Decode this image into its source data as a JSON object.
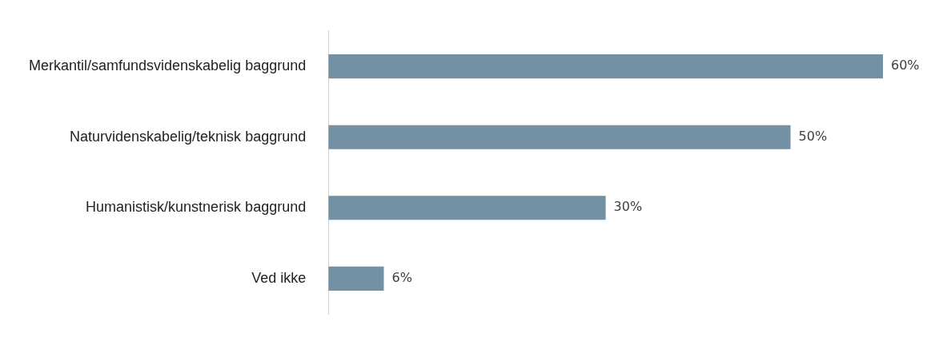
{
  "chart_data": {
    "type": "bar",
    "orientation": "horizontal",
    "categories": [
      "Merkantil/samfundsvidenskabelig baggrund",
      "Naturvidenskabelig/teknisk baggrund",
      "Humanistisk/kunstnerisk baggrund",
      "Ved ikke"
    ],
    "values": [
      60,
      50,
      30,
      6
    ],
    "value_labels": [
      "60%",
      "50%",
      "30%",
      "6%"
    ],
    "color": "#7491a4",
    "grid": false,
    "legend": false
  }
}
